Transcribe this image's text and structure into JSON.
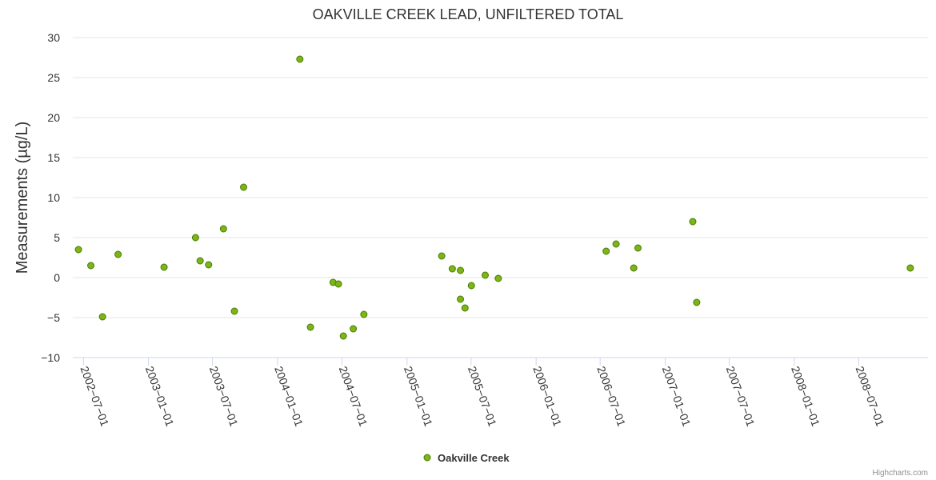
{
  "chart_data": {
    "type": "scatter",
    "title": "OAKVILLE CREEK LEAD, UNFILTERED TOTAL",
    "ylabel": "Measurements (µg/L)",
    "xlabel": "",
    "ylim": [
      -10,
      30
    ],
    "yticks": [
      30,
      25,
      20,
      15,
      10,
      5,
      0,
      -5,
      -10
    ],
    "xticks": [
      "2002-07-01",
      "2003-01-01",
      "2003-07-01",
      "2004-01-01",
      "2004-07-01",
      "2005-01-01",
      "2005-07-01",
      "2006-01-01",
      "2006-07-01",
      "2007-01-01",
      "2007-07-01",
      "2008-01-01",
      "2008-07-01"
    ],
    "xlim": [
      "2002-06-01",
      "2009-01-13"
    ],
    "grid": true,
    "legend_position": "bottom-center",
    "series": [
      {
        "name": "Oakville Creek",
        "color": "#7cb518",
        "points": [
          {
            "x": "2002-06-17",
            "y": 3.5
          },
          {
            "x": "2002-07-22",
            "y": 1.5
          },
          {
            "x": "2002-08-24",
            "y": -4.9
          },
          {
            "x": "2002-10-07",
            "y": 2.9
          },
          {
            "x": "2003-02-14",
            "y": 1.3
          },
          {
            "x": "2003-05-14",
            "y": 5.0
          },
          {
            "x": "2003-05-27",
            "y": 2.1
          },
          {
            "x": "2003-06-20",
            "y": 1.6
          },
          {
            "x": "2003-08-01",
            "y": 6.1
          },
          {
            "x": "2003-09-01",
            "y": -4.2
          },
          {
            "x": "2003-09-27",
            "y": 11.3
          },
          {
            "x": "2004-03-04",
            "y": 27.3
          },
          {
            "x": "2004-04-03",
            "y": -6.2
          },
          {
            "x": "2004-06-06",
            "y": -0.6
          },
          {
            "x": "2004-06-21",
            "y": -0.8
          },
          {
            "x": "2004-07-05",
            "y": -7.3
          },
          {
            "x": "2004-08-02",
            "y": -6.4
          },
          {
            "x": "2004-09-01",
            "y": -4.6
          },
          {
            "x": "2005-04-09",
            "y": 2.7
          },
          {
            "x": "2005-05-09",
            "y": 1.1
          },
          {
            "x": "2005-06-01",
            "y": -2.7
          },
          {
            "x": "2005-06-01",
            "y": 0.9
          },
          {
            "x": "2005-06-14",
            "y": -3.8
          },
          {
            "x": "2005-07-02",
            "y": -1.0
          },
          {
            "x": "2005-08-10",
            "y": 0.3
          },
          {
            "x": "2005-09-16",
            "y": -0.1
          },
          {
            "x": "2006-07-18",
            "y": 3.3
          },
          {
            "x": "2006-08-15",
            "y": 4.2
          },
          {
            "x": "2006-10-04",
            "y": 1.2
          },
          {
            "x": "2006-10-16",
            "y": 3.7
          },
          {
            "x": "2007-03-20",
            "y": 7.0
          },
          {
            "x": "2007-03-31",
            "y": -3.1
          },
          {
            "x": "2008-11-24",
            "y": 1.2
          }
        ]
      }
    ]
  },
  "credits": "Highcharts.com"
}
